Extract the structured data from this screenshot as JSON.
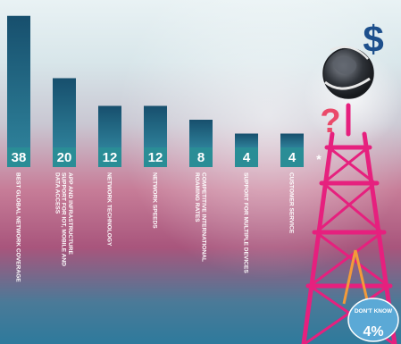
{
  "chart_data": {
    "type": "bar",
    "title": "",
    "categories": [
      "BEST GLOBAL NETWORK COVERAGE",
      "APP AND INFRASTRUCTURE SUPPORT FOR IOT, MOBILE AND DATA ACCESS",
      "NETWORK TECHNOLOGY",
      "NETWORK SPEEDS",
      "COMPETITIVE INTERNATIONAL ROAMING RATES",
      "SUPPORT FOR MULTIPLE DEVICES",
      "CUSTOMER SERVICE"
    ],
    "values": [
      38,
      20,
      12,
      12,
      8,
      4,
      4
    ],
    "ylim": [
      0,
      40
    ],
    "value_color": "#2a8d96",
    "bar_color_top": "#174f6d",
    "bar_color_bottom": "#2d7a96",
    "extra_marker": "*",
    "badge": {
      "label": "DON'T KNOW",
      "value": "4%"
    },
    "tower_color": "#e6207e",
    "dollar_sign": "$",
    "question_mark": "?"
  }
}
